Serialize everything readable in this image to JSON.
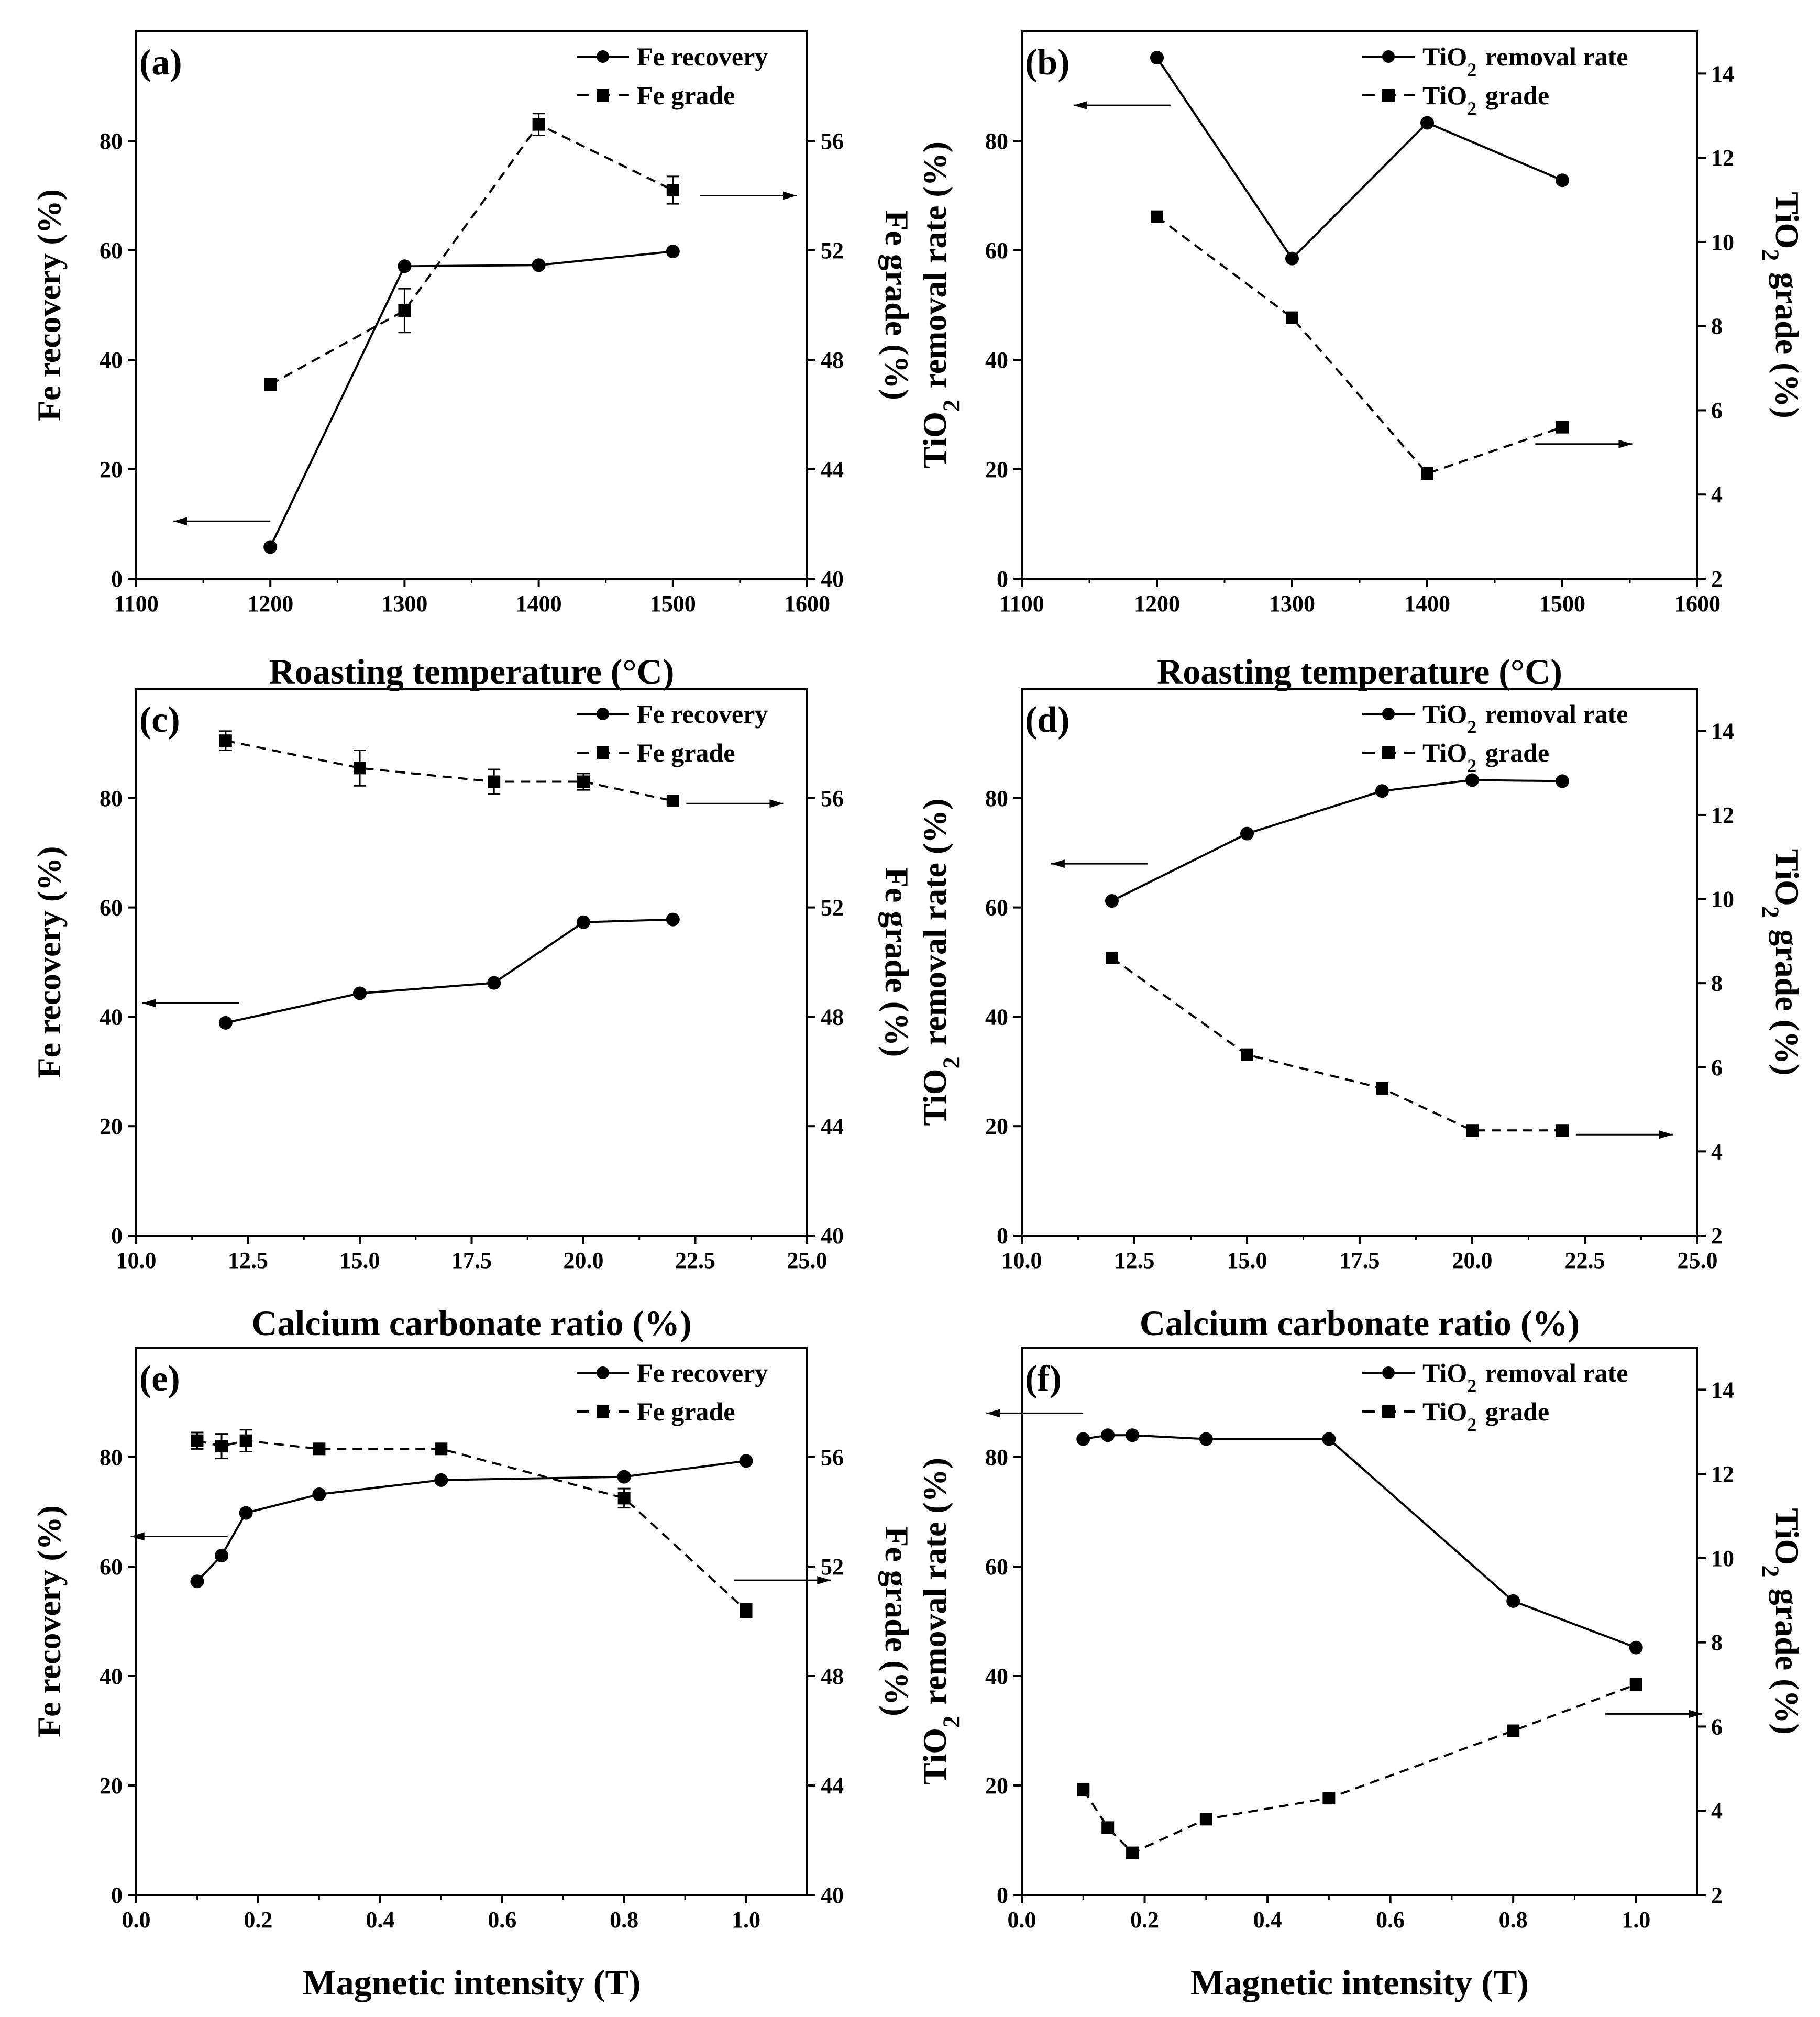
{
  "chart_data": [
    {
      "id": "a",
      "type": "line",
      "panel_label": "(a)",
      "xlabel": "Roasting temperature (°C)",
      "xlim": [
        1100,
        1600
      ],
      "xticks": [
        1100,
        1200,
        1300,
        1400,
        1500,
        1600
      ],
      "ylabel_left": "Fe recovery (%)",
      "ylim_left": [
        0,
        100
      ],
      "yticks_left": [
        0,
        20,
        40,
        60,
        80
      ],
      "ylabel_right": "Fe grade (%)",
      "ylim_right": [
        40,
        60
      ],
      "yticks_right": [
        40,
        44,
        48,
        52,
        56
      ],
      "legend_position": "top-right",
      "series": [
        {
          "name": "Fe recovery",
          "axis": "left",
          "style": "solid",
          "marker": "circle",
          "x": [
            1200,
            1300,
            1400,
            1500
          ],
          "y": [
            5.8,
            57.1,
            57.3,
            59.8
          ],
          "err": [
            0,
            0,
            0,
            0
          ]
        },
        {
          "name": "Fe grade",
          "axis": "right",
          "style": "dashed",
          "marker": "square",
          "x": [
            1200,
            1300,
            1400,
            1500
          ],
          "y": [
            47.1,
            49.8,
            56.6,
            54.2
          ],
          "err": [
            0,
            0.8,
            0.4,
            0.5
          ]
        }
      ],
      "arrows": [
        {
          "x": 1200,
          "y": 10.5,
          "dir": "left",
          "axis": "left"
        },
        {
          "x": 1520,
          "y": 54.0,
          "dir": "right",
          "axis": "right"
        }
      ]
    },
    {
      "id": "b",
      "type": "line",
      "panel_label": "(b)",
      "xlabel": "Roasting temperature (°C)",
      "xlim": [
        1100,
        1600
      ],
      "xticks": [
        1100,
        1200,
        1300,
        1400,
        1500,
        1600
      ],
      "ylabel_left": "TiO₂ removal rate (%)",
      "ylim_left": [
        0,
        100
      ],
      "yticks_left": [
        0,
        20,
        40,
        60,
        80
      ],
      "ylabel_right": "TiO₂ grade (%)",
      "ylim_right": [
        2,
        15
      ],
      "yticks_right": [
        2,
        4,
        6,
        8,
        10,
        12,
        14
      ],
      "legend_position": "top-right",
      "series": [
        {
          "name": "TiO₂ removal rate",
          "axis": "left",
          "style": "solid",
          "marker": "circle",
          "x": [
            1200,
            1300,
            1400,
            1500
          ],
          "y": [
            95.2,
            58.5,
            83.3,
            72.8
          ],
          "err": [
            0,
            0,
            0,
            0
          ]
        },
        {
          "name": "TiO₂ grade",
          "axis": "right",
          "style": "dashed",
          "marker": "square",
          "x": [
            1200,
            1300,
            1400,
            1500
          ],
          "y": [
            10.6,
            8.2,
            4.5,
            5.6
          ],
          "err": [
            0,
            0,
            0,
            0
          ]
        }
      ],
      "arrows": [
        {
          "x": 1210,
          "y": 86.5,
          "dir": "left",
          "axis": "left"
        },
        {
          "x": 1480,
          "y": 5.2,
          "dir": "right",
          "axis": "right"
        }
      ]
    },
    {
      "id": "c",
      "type": "line",
      "panel_label": "(c)",
      "xlabel": "Calcium carbonate ratio (%)",
      "xlim": [
        10,
        25
      ],
      "xticks": [
        10.0,
        12.5,
        15.0,
        17.5,
        20.0,
        22.5,
        25.0
      ],
      "ylabel_left": "Fe recovery (%)",
      "ylim_left": [
        0,
        100
      ],
      "yticks_left": [
        0,
        20,
        40,
        60,
        80
      ],
      "ylabel_right": "Fe grade (%)",
      "ylim_right": [
        40,
        60
      ],
      "yticks_right": [
        40,
        44,
        48,
        52,
        56
      ],
      "legend_position": "top-right",
      "series": [
        {
          "name": "Fe recovery",
          "axis": "left",
          "style": "solid",
          "marker": "circle",
          "x": [
            12,
            15,
            18,
            20,
            22
          ],
          "y": [
            38.9,
            44.3,
            46.2,
            57.3,
            57.8
          ],
          "err": [
            0,
            0,
            0,
            0,
            0
          ]
        },
        {
          "name": "Fe grade",
          "axis": "right",
          "style": "dashed",
          "marker": "square",
          "x": [
            12,
            15,
            18,
            20,
            22
          ],
          "y": [
            58.1,
            57.1,
            56.6,
            56.6,
            55.9
          ],
          "err": [
            0.35,
            0.65,
            0.45,
            0.3,
            0
          ]
        }
      ],
      "arrows": [
        {
          "x": 12.3,
          "y": 42.5,
          "dir": "left",
          "axis": "left"
        },
        {
          "x": 22.3,
          "y": 55.8,
          "dir": "right",
          "axis": "right"
        }
      ]
    },
    {
      "id": "d",
      "type": "line",
      "panel_label": "(d)",
      "xlabel": "Calcium carbonate ratio (%)",
      "xlim": [
        10,
        25
      ],
      "xticks": [
        10.0,
        12.5,
        15.0,
        17.5,
        20.0,
        22.5,
        25.0
      ],
      "ylabel_left": "TiO₂ removal rate (%)",
      "ylim_left": [
        0,
        100
      ],
      "yticks_left": [
        0,
        20,
        40,
        60,
        80
      ],
      "ylabel_right": "TiO₂ grade (%)",
      "ylim_right": [
        2,
        15
      ],
      "yticks_right": [
        2,
        4,
        6,
        8,
        10,
        12,
        14
      ],
      "legend_position": "top-right",
      "series": [
        {
          "name": "TiO₂ removal rate",
          "axis": "left",
          "style": "solid",
          "marker": "circle",
          "x": [
            12,
            15,
            18,
            20,
            22
          ],
          "y": [
            61.2,
            73.5,
            81.3,
            83.3,
            83.1
          ],
          "err": [
            0,
            0,
            0,
            0,
            0
          ]
        },
        {
          "name": "TiO₂ grade",
          "axis": "right",
          "style": "dashed",
          "marker": "square",
          "x": [
            12,
            15,
            18,
            20,
            22
          ],
          "y": [
            8.6,
            6.3,
            5.5,
            4.5,
            4.5
          ],
          "err": [
            0,
            0,
            0,
            0,
            0
          ]
        }
      ],
      "arrows": [
        {
          "x": 12.8,
          "y": 68.0,
          "dir": "left",
          "axis": "left"
        },
        {
          "x": 22.3,
          "y": 4.4,
          "dir": "right",
          "axis": "right"
        }
      ]
    },
    {
      "id": "e",
      "type": "line",
      "panel_label": "(e)",
      "xlabel": "Magnetic intensity (T)",
      "xlim": [
        0,
        1.1
      ],
      "xticks": [
        0.0,
        0.2,
        0.4,
        0.6,
        0.8,
        1.0
      ],
      "ylabel_left": "Fe recovery (%)",
      "ylim_left": [
        0,
        100
      ],
      "yticks_left": [
        0,
        20,
        40,
        60,
        80
      ],
      "ylabel_right": "Fe grade (%)",
      "ylim_right": [
        40,
        60
      ],
      "yticks_right": [
        40,
        44,
        48,
        52,
        56
      ],
      "legend_position": "top-right",
      "series": [
        {
          "name": "Fe recovery",
          "axis": "left",
          "style": "solid",
          "marker": "circle",
          "x": [
            0.1,
            0.14,
            0.18,
            0.3,
            0.5,
            0.8,
            1.0
          ],
          "y": [
            57.3,
            62.0,
            69.8,
            73.2,
            75.8,
            76.4,
            79.3
          ],
          "err": [
            0,
            0,
            0,
            0,
            0,
            0,
            0
          ]
        },
        {
          "name": "Fe grade",
          "axis": "right",
          "style": "dashed",
          "marker": "square",
          "x": [
            0.1,
            0.14,
            0.18,
            0.3,
            0.5,
            0.8,
            1.0
          ],
          "y": [
            56.6,
            56.4,
            56.6,
            56.3,
            56.3,
            54.5,
            50.4
          ],
          "err": [
            0.3,
            0.45,
            0.4,
            0,
            0,
            0.35,
            0.25
          ]
        }
      ],
      "arrows": [
        {
          "x": 0.15,
          "y": 65.5,
          "dir": "left",
          "axis": "left"
        },
        {
          "x": 0.98,
          "y": 51.5,
          "dir": "right",
          "axis": "right"
        }
      ]
    },
    {
      "id": "f",
      "type": "line",
      "panel_label": "(f)",
      "xlabel": "Magnetic intensity (T)",
      "xlim": [
        0,
        1.1
      ],
      "xticks": [
        0.0,
        0.2,
        0.4,
        0.6,
        0.8,
        1.0
      ],
      "ylabel_left": "TiO₂ removal rate (%)",
      "ylim_left": [
        0,
        100
      ],
      "yticks_left": [
        0,
        20,
        40,
        60,
        80
      ],
      "ylabel_right": "TiO₂ grade (%)",
      "ylim_right": [
        2,
        15
      ],
      "yticks_right": [
        2,
        4,
        6,
        8,
        10,
        12,
        14
      ],
      "legend_position": "top-right",
      "series": [
        {
          "name": "TiO₂ removal rate",
          "axis": "left",
          "style": "solid",
          "marker": "circle",
          "x": [
            0.1,
            0.14,
            0.18,
            0.3,
            0.5,
            0.8,
            1.0
          ],
          "y": [
            83.3,
            84.0,
            84.0,
            83.3,
            83.3,
            53.7,
            45.2
          ],
          "err": [
            0,
            0,
            0,
            0,
            0,
            0,
            0
          ]
        },
        {
          "name": "TiO₂ grade",
          "axis": "right",
          "style": "dashed",
          "marker": "square",
          "x": [
            0.1,
            0.14,
            0.18,
            0.3,
            0.5,
            0.8,
            1.0
          ],
          "y": [
            4.5,
            3.6,
            3.0,
            3.8,
            4.3,
            5.9,
            7.0
          ],
          "err": [
            0,
            0,
            0,
            0,
            0,
            0,
            0
          ]
        }
      ],
      "arrows": [
        {
          "x": 0.1,
          "y": 88.0,
          "dir": "left",
          "axis": "left"
        },
        {
          "x": 0.95,
          "y": 6.3,
          "dir": "right",
          "axis": "right"
        }
      ]
    }
  ]
}
